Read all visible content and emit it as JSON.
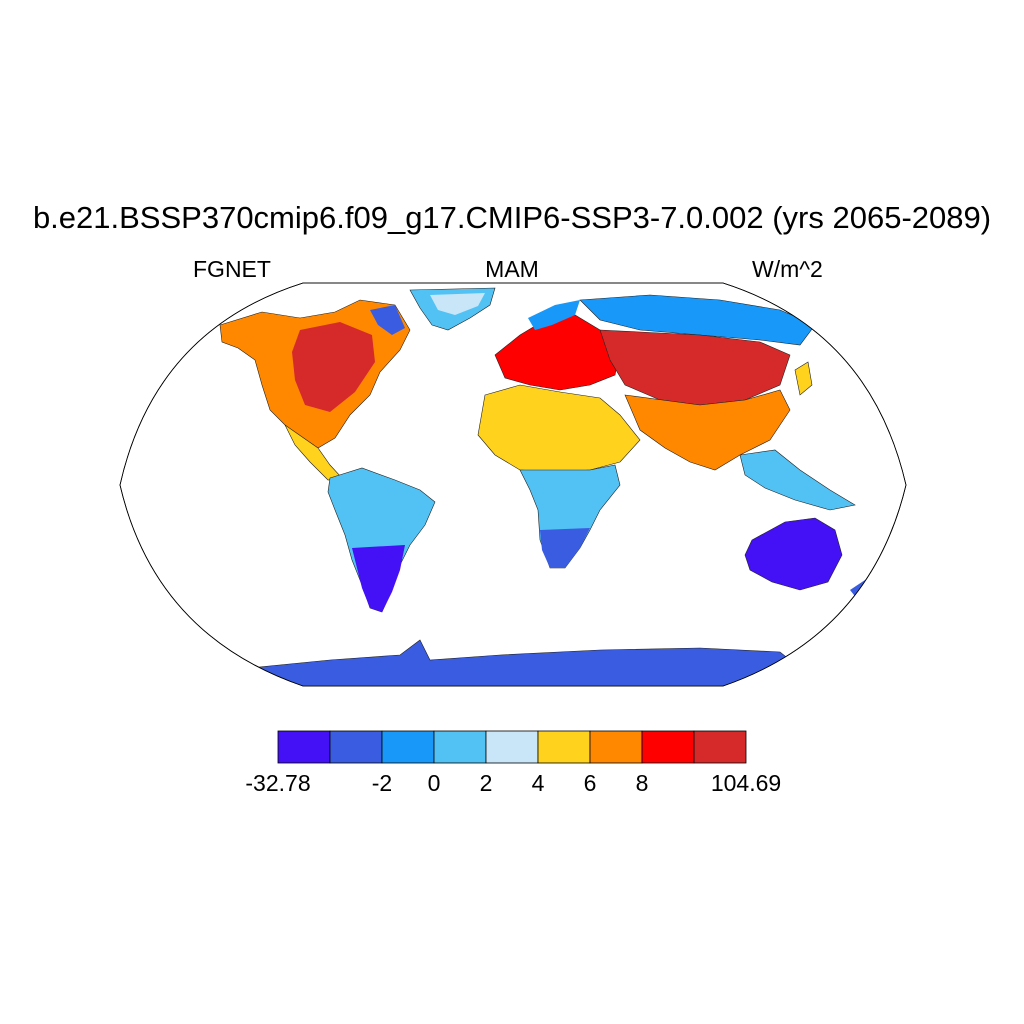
{
  "title": "b.e21.BSSP370cmip6.f09_g17.CMIP6-SSP3-7.0.002 (yrs 2065-2089)",
  "left_label": "FGNET",
  "center_label": "MAM",
  "right_label": "W/m^2",
  "colorbar": {
    "colors": [
      "#4410f5",
      "#3a5ce0",
      "#1898f8",
      "#52c2f4",
      "#c8e6f8",
      "#ffd21e",
      "#ff8800",
      "#ff0000",
      "#d62a2a"
    ],
    "tick_labels": [
      "-32.78",
      "-2",
      "0",
      "2",
      "4",
      "6",
      "8",
      "104.69"
    ]
  },
  "map": {
    "projection": "Robinson",
    "ocean_color": "#ffffff",
    "regions": [
      {
        "name": "north-america",
        "color": "#ff8800"
      },
      {
        "name": "eastern-north-america",
        "color": "#d62a2a"
      },
      {
        "name": "south-america",
        "color": "#52c2f4"
      },
      {
        "name": "southern-south-america",
        "color": "#4410f5"
      },
      {
        "name": "sahara",
        "color": "#ffd21e"
      },
      {
        "name": "central-africa",
        "color": "#52c2f4"
      },
      {
        "name": "southern-africa",
        "color": "#3a5ce0"
      },
      {
        "name": "europe",
        "color": "#ff0000"
      },
      {
        "name": "siberia",
        "color": "#1898f8"
      },
      {
        "name": "central-asia",
        "color": "#d62a2a"
      },
      {
        "name": "india-china",
        "color": "#ff8800"
      },
      {
        "name": "southeast-asia",
        "color": "#52c2f4"
      },
      {
        "name": "australia",
        "color": "#4410f5"
      },
      {
        "name": "greenland",
        "color": "#52c2f4"
      },
      {
        "name": "antarctica",
        "color": "#3a5ce0"
      }
    ]
  }
}
